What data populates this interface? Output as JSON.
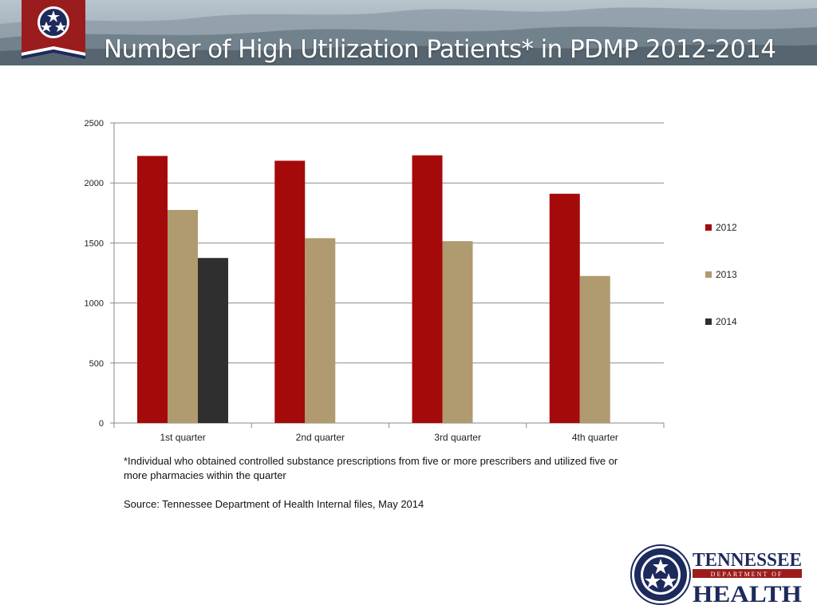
{
  "slide": {
    "title": "Number of High Utilization Patients* in PDMP 2012-2014",
    "footnote": "*Individual who obtained controlled substance prescriptions from five or more prescribers and utilized five or more pharmacies within the quarter",
    "source": "Source: Tennessee Department of Health Internal files, May 2014"
  },
  "logo": {
    "line1": "TENNESSEE",
    "line2": "DEPARTMENT OF",
    "line3": "HEALTH"
  },
  "colors": {
    "2012": "#a50a0a",
    "2013": "#b09a70",
    "2014": "#2f2f2f",
    "logo_navy": "#1d2a5c",
    "logo_red": "#9e1b1b"
  },
  "chart_data": {
    "type": "bar",
    "categories": [
      "1st quarter",
      "2nd quarter",
      "3rd quarter",
      "4th quarter"
    ],
    "series": [
      {
        "name": "2012",
        "values": [
          2225,
          2185,
          2230,
          1910
        ]
      },
      {
        "name": "2013",
        "values": [
          1775,
          1540,
          1515,
          1225
        ]
      },
      {
        "name": "2014",
        "values": [
          1375,
          null,
          null,
          null
        ]
      }
    ],
    "title": "",
    "xlabel": "",
    "ylabel": "",
    "ylim": [
      0,
      2500
    ],
    "yticks": [
      0,
      500,
      1000,
      1500,
      2000,
      2500
    ],
    "grid": true,
    "legend": "right"
  }
}
